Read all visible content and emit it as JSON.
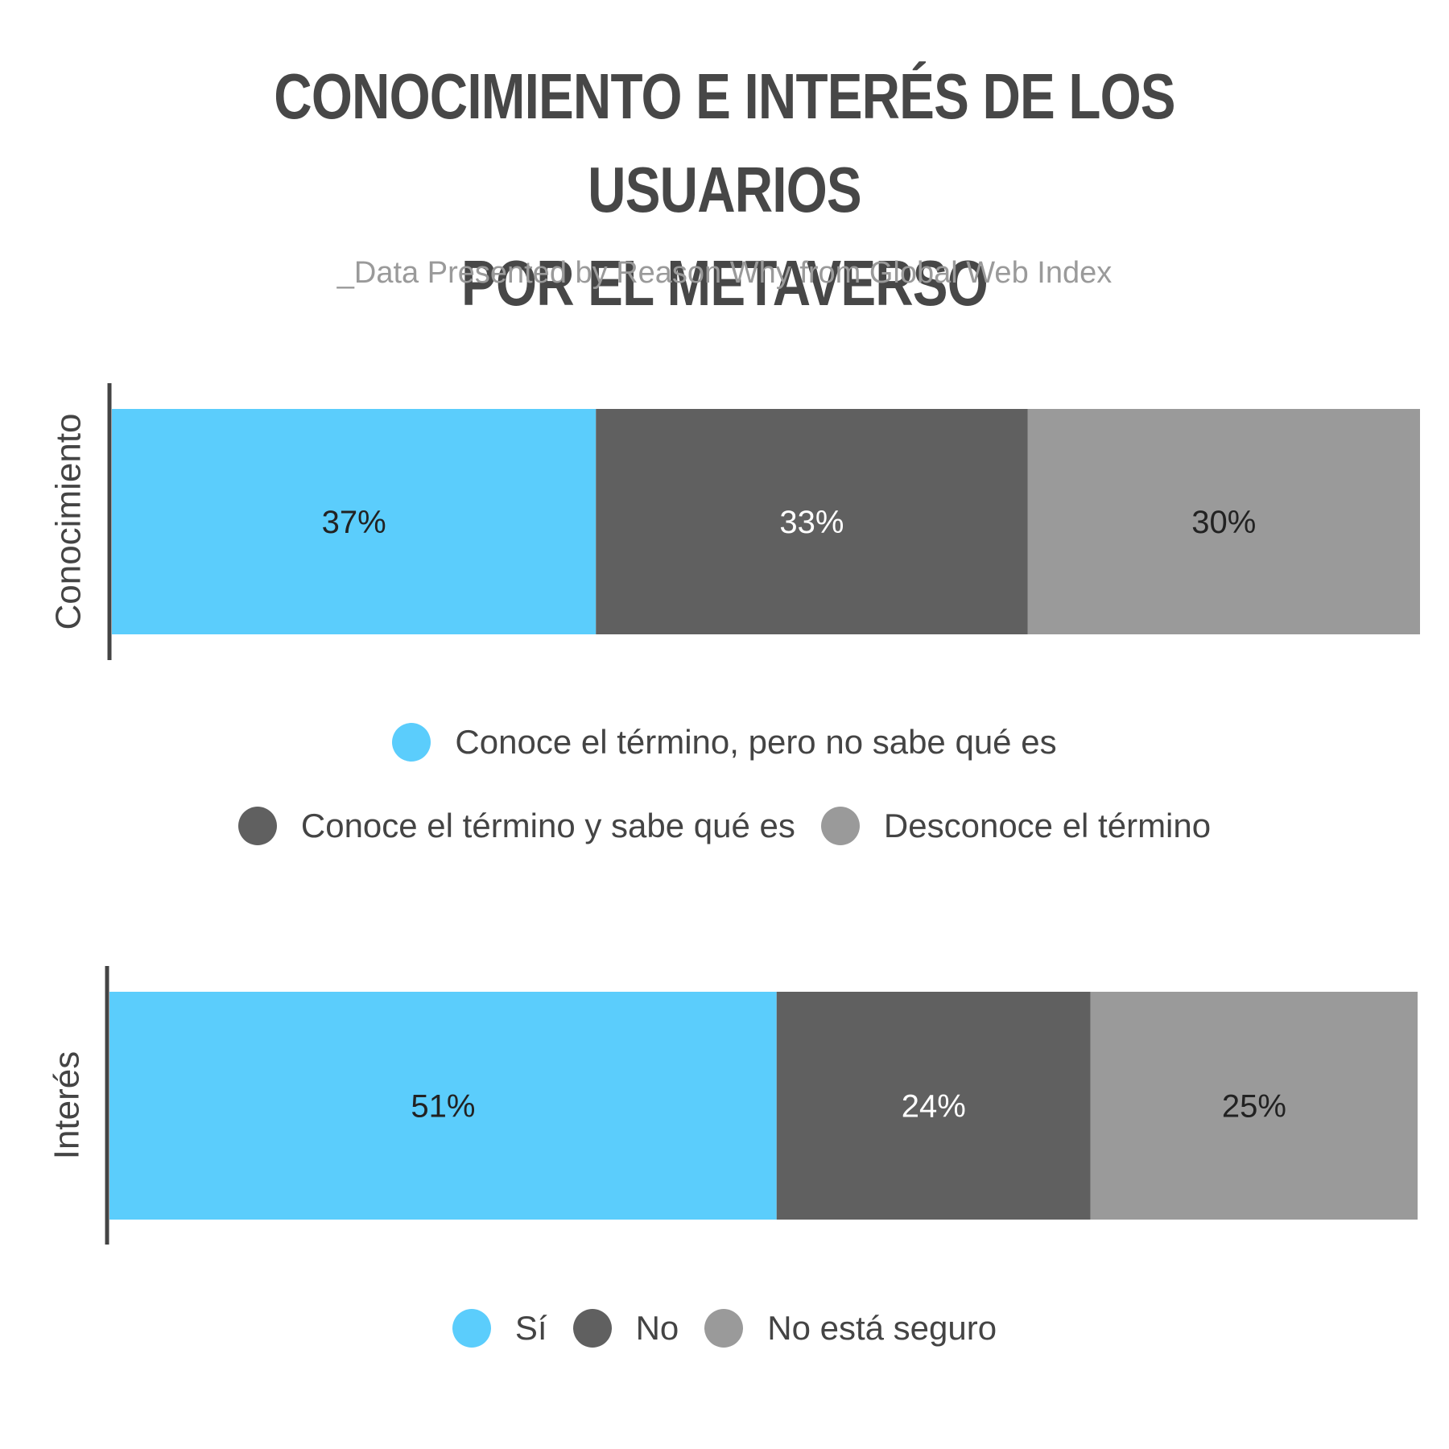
{
  "title": {
    "line1": "CONOCIMIENTO E INTERÉS DE LOS USUARIOS",
    "line2": "POR EL METAVERSO"
  },
  "subtitle": "_Data Presented by Reason Why from Global Web Index",
  "colors": {
    "blue": "#5bcdfc",
    "dark_gray": "#606060",
    "light_gray": "#9a9a9a",
    "axis": "#444444",
    "label_dark": "#222222",
    "label_light": "#ffffff"
  },
  "chart_data": [
    {
      "type": "bar",
      "orientation": "horizontal-stacked-100",
      "category": "Conocimiento",
      "series": [
        {
          "name": "Conoce el término, pero no sabe qué es",
          "value": 37,
          "label": "37%",
          "color": "#5bcdfc"
        },
        {
          "name": "Conoce el término y sabe qué es",
          "value": 33,
          "label": "33%",
          "color": "#606060"
        },
        {
          "name": "Desconoce el término",
          "value": 30,
          "label": "30%",
          "color": "#9a9a9a"
        }
      ],
      "xlim": [
        0,
        100
      ],
      "legend_position": "bottom"
    },
    {
      "type": "bar",
      "orientation": "horizontal-stacked-100",
      "category": "Interés",
      "series": [
        {
          "name": "Sí",
          "value": 51,
          "label": "51%",
          "color": "#5bcdfc"
        },
        {
          "name": "No",
          "value": 24,
          "label": "24%",
          "color": "#606060"
        },
        {
          "name": "No está seguro",
          "value": 25,
          "label": "25%",
          "color": "#9a9a9a"
        }
      ],
      "xlim": [
        0,
        100
      ],
      "legend_position": "bottom"
    }
  ]
}
